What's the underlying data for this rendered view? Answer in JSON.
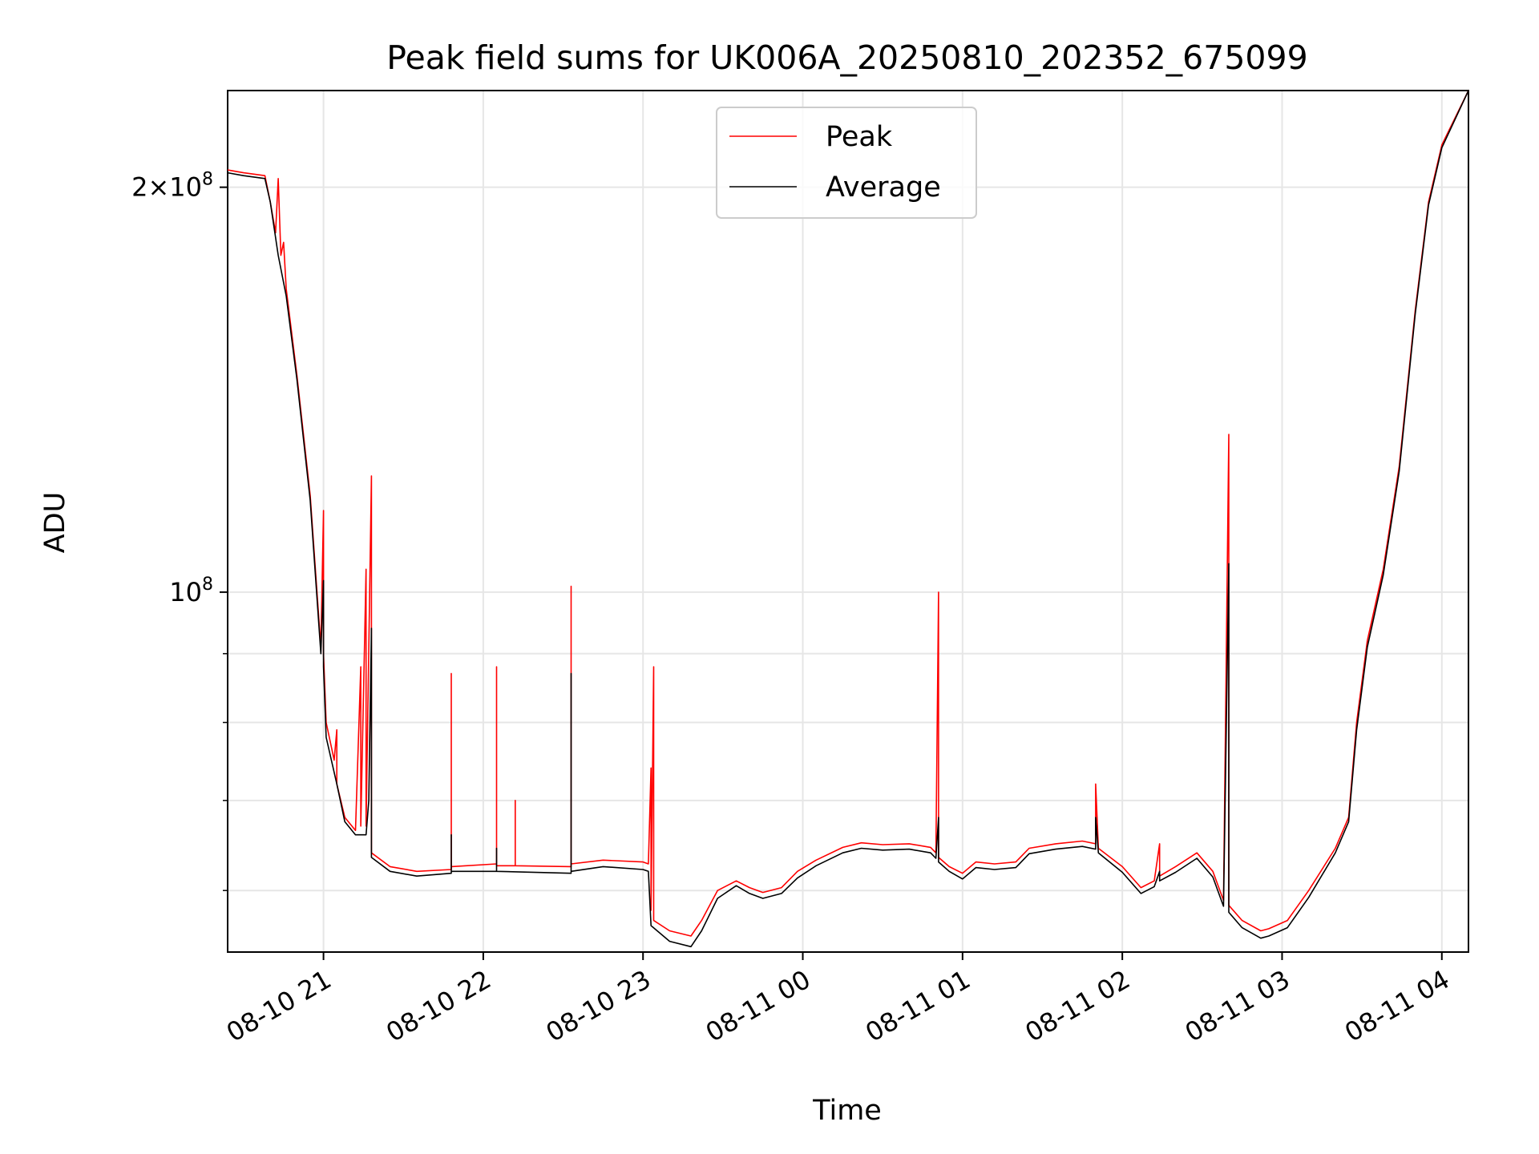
{
  "chart_data": {
    "type": "line",
    "title": "Peak field sums for UK006A_20250810_202352_675099",
    "xlabel": "Time",
    "ylabel": "ADU",
    "yscale": "log",
    "xlim": [
      "2025-08-10 20:24",
      "2025-08-11 04:10"
    ],
    "ylim": [
      54000000,
      236000000
    ],
    "grid": true,
    "legend_position": "upper center",
    "x_tick_labels": [
      "08-10 21",
      "08-10 22",
      "08-10 23",
      "08-11 00",
      "08-11 01",
      "08-11 02",
      "08-11 03",
      "08-11 04"
    ],
    "x_ticks": [
      "2025-08-10 21:00",
      "2025-08-10 22:00",
      "2025-08-10 23:00",
      "2025-08-11 00:00",
      "2025-08-11 01:00",
      "2025-08-11 02:00",
      "2025-08-11 03:00",
      "2025-08-11 04:00"
    ],
    "y_major_ticks": [
      {
        "value": 100000000,
        "mantissa": "",
        "exponent": "8"
      },
      {
        "value": 200000000,
        "mantissa": "2",
        "exponent": "8"
      }
    ],
    "y_minor_ticks": [
      60000000,
      70000000,
      80000000,
      90000000
    ],
    "colors": {
      "peak": "#ff0000",
      "average": "#000000",
      "grid": "#e6e6e6"
    },
    "series": [
      {
        "name": "Peak",
        "color": "#ff0000",
        "points": [
          [
            "2025-08-10 20:24",
            206000000
          ],
          [
            "2025-08-10 20:30",
            205000000
          ],
          [
            "2025-08-10 20:38",
            204000000
          ],
          [
            "2025-08-10 20:40",
            195000000
          ],
          [
            "2025-08-10 20:42",
            185000000
          ],
          [
            "2025-08-10 20:43",
            203000000
          ],
          [
            "2025-08-10 20:44",
            178000000
          ],
          [
            "2025-08-10 20:45",
            182000000
          ],
          [
            "2025-08-10 20:46",
            168000000
          ],
          [
            "2025-08-10 20:50",
            145000000
          ],
          [
            "2025-08-10 20:55",
            118000000
          ],
          [
            "2025-08-10 20:59",
            91000000
          ],
          [
            "2025-08-10 21:00",
            115000000
          ],
          [
            "2025-08-10 21:00",
            90000000
          ],
          [
            "2025-08-10 21:01",
            80000000
          ],
          [
            "2025-08-10 21:04",
            75000000
          ],
          [
            "2025-08-10 21:05",
            79000000
          ],
          [
            "2025-08-10 21:05",
            72000000
          ],
          [
            "2025-08-10 21:08",
            68000000
          ],
          [
            "2025-08-10 21:12",
            66500000
          ],
          [
            "2025-08-10 21:14",
            88000000
          ],
          [
            "2025-08-10 21:14",
            67000000
          ],
          [
            "2025-08-10 21:16",
            104000000
          ],
          [
            "2025-08-10 21:16",
            67000000
          ],
          [
            "2025-08-10 21:18",
            122000000
          ],
          [
            "2025-08-10 21:18",
            64000000
          ],
          [
            "2025-08-10 21:25",
            62500000
          ],
          [
            "2025-08-10 21:35",
            62000000
          ],
          [
            "2025-08-10 21:48",
            62200000
          ],
          [
            "2025-08-10 21:48",
            87000000
          ],
          [
            "2025-08-10 21:48",
            62500000
          ],
          [
            "2025-08-10 22:05",
            62800000
          ],
          [
            "2025-08-10 22:05",
            88000000
          ],
          [
            "2025-08-10 22:05",
            62600000
          ],
          [
            "2025-08-10 22:12",
            62600000
          ],
          [
            "2025-08-10 22:12",
            70000000
          ],
          [
            "2025-08-10 22:12",
            62600000
          ],
          [
            "2025-08-10 22:33",
            62500000
          ],
          [
            "2025-08-10 22:33",
            101000000
          ],
          [
            "2025-08-10 22:33",
            62800000
          ],
          [
            "2025-08-10 22:45",
            63200000
          ],
          [
            "2025-08-10 23:00",
            63000000
          ],
          [
            "2025-08-10 23:02",
            62800000
          ],
          [
            "2025-08-10 23:03",
            74000000
          ],
          [
            "2025-08-10 23:03",
            58000000
          ],
          [
            "2025-08-10 23:04",
            88000000
          ],
          [
            "2025-08-10 23:04",
            57000000
          ],
          [
            "2025-08-10 23:10",
            56000000
          ],
          [
            "2025-08-10 23:18",
            55500000
          ],
          [
            "2025-08-10 23:22",
            57000000
          ],
          [
            "2025-08-10 23:28",
            60000000
          ],
          [
            "2025-08-10 23:35",
            61000000
          ],
          [
            "2025-08-10 23:40",
            60300000
          ],
          [
            "2025-08-10 23:45",
            59800000
          ],
          [
            "2025-08-10 23:52",
            60300000
          ],
          [
            "2025-08-10 23:58",
            62000000
          ],
          [
            "2025-08-11 00:05",
            63200000
          ],
          [
            "2025-08-11 00:15",
            64600000
          ],
          [
            "2025-08-11 00:22",
            65100000
          ],
          [
            "2025-08-11 00:30",
            64900000
          ],
          [
            "2025-08-11 00:40",
            65000000
          ],
          [
            "2025-08-11 00:48",
            64600000
          ],
          [
            "2025-08-11 00:50",
            64000000
          ],
          [
            "2025-08-11 00:51",
            100000000
          ],
          [
            "2025-08-11 00:51",
            63500000
          ],
          [
            "2025-08-11 00:55",
            62500000
          ],
          [
            "2025-08-11 01:00",
            61800000
          ],
          [
            "2025-08-11 01:05",
            63000000
          ],
          [
            "2025-08-11 01:12",
            62800000
          ],
          [
            "2025-08-11 01:20",
            63000000
          ],
          [
            "2025-08-11 01:25",
            64500000
          ],
          [
            "2025-08-11 01:35",
            65000000
          ],
          [
            "2025-08-11 01:45",
            65300000
          ],
          [
            "2025-08-11 01:50",
            65000000
          ],
          [
            "2025-08-11 01:50",
            72000000
          ],
          [
            "2025-08-11 01:51",
            64500000
          ],
          [
            "2025-08-11 02:00",
            62500000
          ],
          [
            "2025-08-11 02:07",
            60300000
          ],
          [
            "2025-08-11 02:12",
            61000000
          ],
          [
            "2025-08-11 02:14",
            65000000
          ],
          [
            "2025-08-11 02:14",
            61500000
          ],
          [
            "2025-08-11 02:20",
            62500000
          ],
          [
            "2025-08-11 02:28",
            64000000
          ],
          [
            "2025-08-11 02:34",
            62000000
          ],
          [
            "2025-08-11 02:38",
            59000000
          ],
          [
            "2025-08-11 02:40",
            131000000
          ],
          [
            "2025-08-11 02:40",
            58500000
          ],
          [
            "2025-08-11 02:45",
            57000000
          ],
          [
            "2025-08-11 02:52",
            56000000
          ],
          [
            "2025-08-11 02:55",
            56200000
          ],
          [
            "2025-08-11 03:02",
            57000000
          ],
          [
            "2025-08-11 03:10",
            60000000
          ],
          [
            "2025-08-11 03:20",
            64500000
          ],
          [
            "2025-08-11 03:25",
            68000000
          ],
          [
            "2025-08-11 03:28",
            80000000
          ],
          [
            "2025-08-11 03:32",
            92000000
          ],
          [
            "2025-08-11 03:38",
            104000000
          ],
          [
            "2025-08-11 03:44",
            124000000
          ],
          [
            "2025-08-11 03:50",
            162000000
          ],
          [
            "2025-08-11 03:55",
            195000000
          ],
          [
            "2025-08-11 04:00",
            215000000
          ],
          [
            "2025-08-11 04:10",
            236000000
          ]
        ]
      },
      {
        "name": "Average",
        "color": "#000000",
        "points": [
          [
            "2025-08-10 20:24",
            205000000
          ],
          [
            "2025-08-10 20:30",
            204000000
          ],
          [
            "2025-08-10 20:38",
            203000000
          ],
          [
            "2025-08-10 20:40",
            195000000
          ],
          [
            "2025-08-10 20:43",
            178000000
          ],
          [
            "2025-08-10 20:46",
            166000000
          ],
          [
            "2025-08-10 20:50",
            144000000
          ],
          [
            "2025-08-10 20:55",
            117000000
          ],
          [
            "2025-08-10 20:59",
            90000000
          ],
          [
            "2025-08-10 21:00",
            102000000
          ],
          [
            "2025-08-10 21:00",
            88000000
          ],
          [
            "2025-08-10 21:01",
            78000000
          ],
          [
            "2025-08-10 21:05",
            72000000
          ],
          [
            "2025-08-10 21:08",
            67500000
          ],
          [
            "2025-08-10 21:12",
            66000000
          ],
          [
            "2025-08-10 21:16",
            66000000
          ],
          [
            "2025-08-10 21:17",
            70000000
          ],
          [
            "2025-08-10 21:18",
            94000000
          ],
          [
            "2025-08-10 21:18",
            63500000
          ],
          [
            "2025-08-10 21:25",
            62000000
          ],
          [
            "2025-08-10 21:35",
            61500000
          ],
          [
            "2025-08-10 21:48",
            61800000
          ],
          [
            "2025-08-10 21:48",
            66000000
          ],
          [
            "2025-08-10 21:48",
            62000000
          ],
          [
            "2025-08-10 22:05",
            62000000
          ],
          [
            "2025-08-10 22:05",
            64500000
          ],
          [
            "2025-08-10 22:05",
            62000000
          ],
          [
            "2025-08-10 22:33",
            61800000
          ],
          [
            "2025-08-10 22:33",
            87000000
          ],
          [
            "2025-08-10 22:33",
            62000000
          ],
          [
            "2025-08-10 22:45",
            62500000
          ],
          [
            "2025-08-10 23:00",
            62200000
          ],
          [
            "2025-08-10 23:02",
            62000000
          ],
          [
            "2025-08-10 23:03",
            56500000
          ],
          [
            "2025-08-10 23:10",
            55000000
          ],
          [
            "2025-08-10 23:18",
            54500000
          ],
          [
            "2025-08-10 23:22",
            56000000
          ],
          [
            "2025-08-10 23:28",
            59200000
          ],
          [
            "2025-08-10 23:35",
            60500000
          ],
          [
            "2025-08-10 23:40",
            59700000
          ],
          [
            "2025-08-10 23:45",
            59200000
          ],
          [
            "2025-08-10 23:52",
            59700000
          ],
          [
            "2025-08-10 23:58",
            61300000
          ],
          [
            "2025-08-11 00:05",
            62600000
          ],
          [
            "2025-08-11 00:15",
            64000000
          ],
          [
            "2025-08-11 00:22",
            64500000
          ],
          [
            "2025-08-11 00:30",
            64300000
          ],
          [
            "2025-08-11 00:40",
            64400000
          ],
          [
            "2025-08-11 00:48",
            64000000
          ],
          [
            "2025-08-11 00:50",
            63400000
          ],
          [
            "2025-08-11 00:51",
            68000000
          ],
          [
            "2025-08-11 00:51",
            63000000
          ],
          [
            "2025-08-11 00:55",
            62000000
          ],
          [
            "2025-08-11 01:00",
            61200000
          ],
          [
            "2025-08-11 01:05",
            62400000
          ],
          [
            "2025-08-11 01:12",
            62200000
          ],
          [
            "2025-08-11 01:20",
            62400000
          ],
          [
            "2025-08-11 01:25",
            63900000
          ],
          [
            "2025-08-11 01:35",
            64400000
          ],
          [
            "2025-08-11 01:45",
            64700000
          ],
          [
            "2025-08-11 01:50",
            64400000
          ],
          [
            "2025-08-11 01:50",
            68000000
          ],
          [
            "2025-08-11 01:51",
            64000000
          ],
          [
            "2025-08-11 02:00",
            61900000
          ],
          [
            "2025-08-11 02:07",
            59700000
          ],
          [
            "2025-08-11 02:12",
            60400000
          ],
          [
            "2025-08-11 02:14",
            62000000
          ],
          [
            "2025-08-11 02:14",
            61000000
          ],
          [
            "2025-08-11 02:20",
            61900000
          ],
          [
            "2025-08-11 02:28",
            63400000
          ],
          [
            "2025-08-11 02:34",
            61400000
          ],
          [
            "2025-08-11 02:38",
            58400000
          ],
          [
            "2025-08-11 02:40",
            105000000
          ],
          [
            "2025-08-11 02:40",
            57800000
          ],
          [
            "2025-08-11 02:45",
            56300000
          ],
          [
            "2025-08-11 02:52",
            55300000
          ],
          [
            "2025-08-11 02:55",
            55500000
          ],
          [
            "2025-08-11 03:02",
            56300000
          ],
          [
            "2025-08-11 03:10",
            59300000
          ],
          [
            "2025-08-11 03:20",
            64000000
          ],
          [
            "2025-08-11 03:25",
            67500000
          ],
          [
            "2025-08-11 03:28",
            79000000
          ],
          [
            "2025-08-11 03:32",
            91000000
          ],
          [
            "2025-08-11 03:38",
            103000000
          ],
          [
            "2025-08-11 03:44",
            123000000
          ],
          [
            "2025-08-11 03:50",
            161000000
          ],
          [
            "2025-08-11 03:55",
            194000000
          ],
          [
            "2025-08-11 04:00",
            214000000
          ],
          [
            "2025-08-11 04:10",
            236000000
          ]
        ]
      }
    ]
  }
}
